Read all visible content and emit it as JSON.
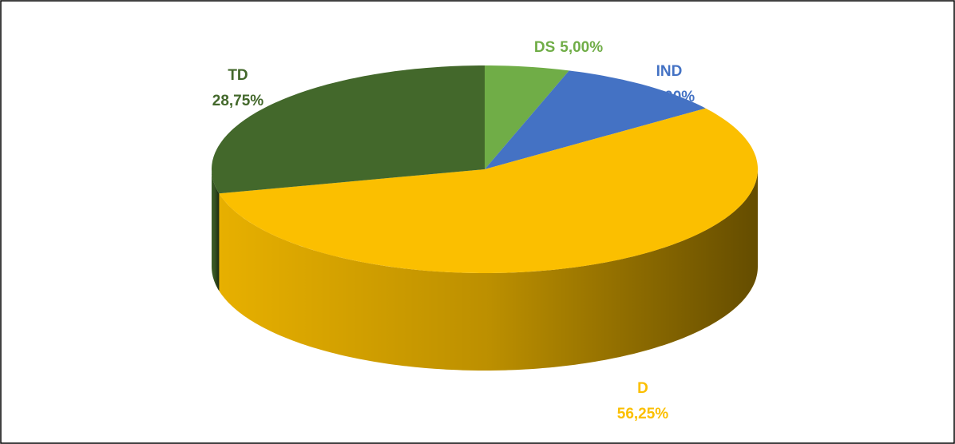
{
  "chart_data": {
    "type": "pie3d",
    "categories": [
      "DS",
      "IND",
      "D",
      "TD"
    ],
    "values": [
      5,
      10,
      56.25,
      28.75
    ],
    "value_labels": [
      "5,00%",
      "10,00%",
      "56,25%",
      "28,75%"
    ],
    "colors": [
      "#70ad47",
      "#4472c4",
      "#fbbf00",
      "#43682b"
    ]
  }
}
